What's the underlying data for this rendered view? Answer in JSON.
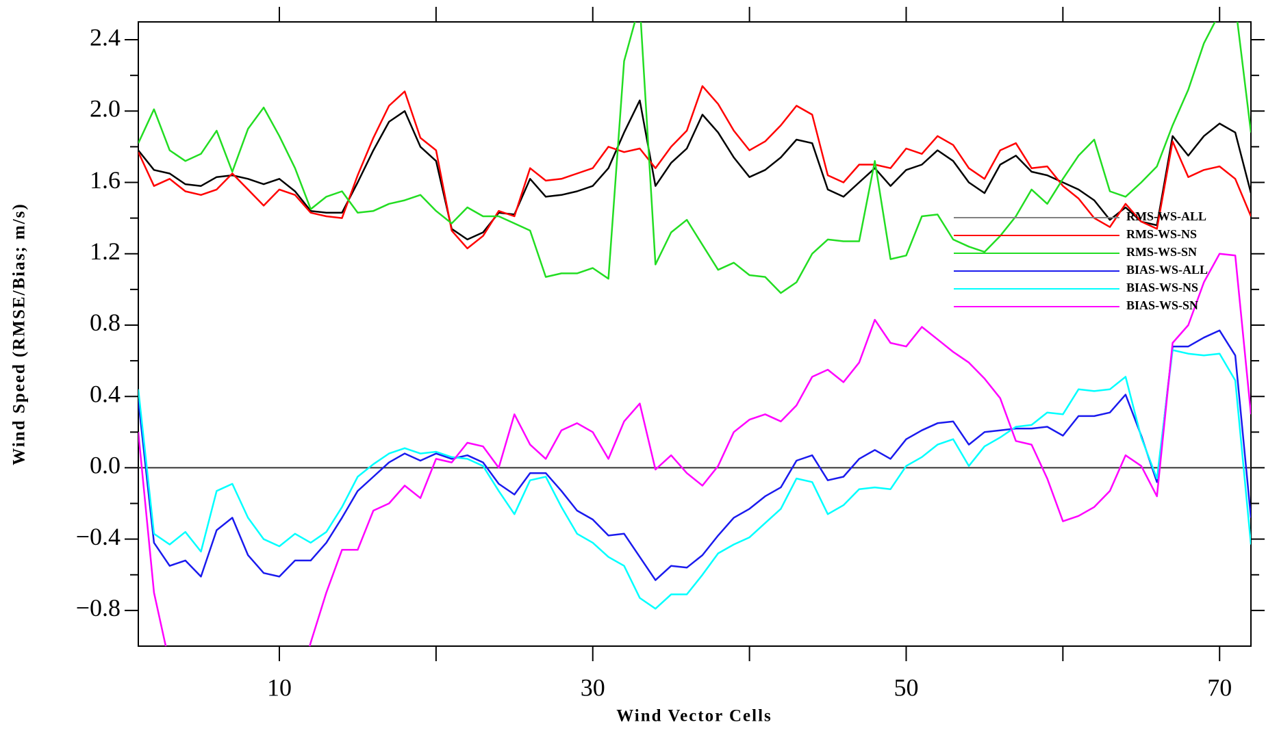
{
  "chart_data": {
    "type": "line",
    "x_label": "Wind Vector Cells",
    "y_label": "Wind Speed (RMSE/Bias; m/s)",
    "x": [
      1,
      2,
      3,
      4,
      5,
      6,
      7,
      8,
      9,
      10,
      11,
      12,
      13,
      14,
      15,
      16,
      17,
      18,
      19,
      20,
      21,
      22,
      23,
      24,
      25,
      26,
      27,
      28,
      29,
      30,
      31,
      32,
      33,
      34,
      35,
      36,
      37,
      38,
      39,
      40,
      41,
      42,
      43,
      44,
      45,
      46,
      47,
      48,
      49,
      50,
      51,
      52,
      53,
      54,
      55,
      56,
      57,
      58,
      59,
      60,
      61,
      62,
      63,
      64,
      65,
      66,
      67,
      68,
      69,
      70,
      71,
      72
    ],
    "xlim": [
      1,
      72
    ],
    "xticks": [
      10,
      30,
      50,
      70
    ],
    "xminor": [
      20,
      40,
      60
    ],
    "ylim": [
      -1.0,
      2.5
    ],
    "yticks": [
      {
        "value": -0.8,
        "label": "−0.8"
      },
      {
        "value": -0.4,
        "label": "−0.4"
      },
      {
        "value": 0,
        "label": "0.0"
      },
      0.4,
      0.8,
      1.2,
      1.6,
      {
        "value": 2,
        "label": "2.0"
      },
      2.4
    ],
    "yminor": [
      -0.6,
      -0.2,
      0.2,
      0.6,
      1.0,
      1.4,
      1.8,
      2.2
    ],
    "hline": 0,
    "legend": "right",
    "series": [
      {
        "name": "RMS-WS-ALL",
        "color": "#000000",
        "legend_color": "#808080",
        "values": [
          1.78,
          1.67,
          1.65,
          1.59,
          1.58,
          1.63,
          1.64,
          1.62,
          1.59,
          1.62,
          1.55,
          1.44,
          1.43,
          1.43,
          1.6,
          1.78,
          1.94,
          2.0,
          1.8,
          1.72,
          1.34,
          1.28,
          1.32,
          1.43,
          1.42,
          1.62,
          1.52,
          1.53,
          1.55,
          1.58,
          1.68,
          1.88,
          2.06,
          1.58,
          1.71,
          1.79,
          1.98,
          1.88,
          1.74,
          1.63,
          1.67,
          1.74,
          1.84,
          1.82,
          1.56,
          1.52,
          1.6,
          1.68,
          1.58,
          1.67,
          1.7,
          1.78,
          1.72,
          1.6,
          1.54,
          1.7,
          1.75,
          1.66,
          1.64,
          1.6,
          1.56,
          1.5,
          1.39,
          1.46,
          1.38,
          1.36,
          1.86,
          1.75,
          1.86,
          1.93,
          1.88,
          1.54
        ]
      },
      {
        "name": "RMS-WS-NS",
        "color": "#ff0000",
        "values": [
          1.77,
          1.58,
          1.62,
          1.55,
          1.53,
          1.56,
          1.65,
          1.56,
          1.47,
          1.56,
          1.53,
          1.43,
          1.41,
          1.4,
          1.64,
          1.85,
          2.03,
          2.11,
          1.85,
          1.78,
          1.33,
          1.23,
          1.3,
          1.44,
          1.41,
          1.68,
          1.61,
          1.62,
          1.65,
          1.68,
          1.8,
          1.77,
          1.79,
          1.68,
          1.8,
          1.89,
          2.14,
          2.04,
          1.89,
          1.78,
          1.83,
          1.92,
          2.03,
          1.98,
          1.64,
          1.6,
          1.7,
          1.7,
          1.68,
          1.79,
          1.76,
          1.86,
          1.81,
          1.68,
          1.62,
          1.78,
          1.82,
          1.68,
          1.69,
          1.58,
          1.51,
          1.4,
          1.35,
          1.48,
          1.38,
          1.34,
          1.83,
          1.63,
          1.67,
          1.69,
          1.62,
          1.41
        ]
      },
      {
        "name": "RMS-WS-SN",
        "color": "#22dd22",
        "values": [
          1.82,
          2.01,
          1.78,
          1.72,
          1.76,
          1.89,
          1.66,
          1.9,
          2.02,
          1.86,
          1.68,
          1.45,
          1.52,
          1.55,
          1.43,
          1.44,
          1.48,
          1.5,
          1.53,
          1.44,
          1.37,
          1.46,
          1.41,
          1.41,
          1.37,
          1.33,
          1.07,
          1.09,
          1.09,
          1.12,
          1.06,
          2.28,
          2.6,
          1.14,
          1.32,
          1.39,
          1.25,
          1.11,
          1.15,
          1.08,
          1.07,
          0.98,
          1.04,
          1.2,
          1.28,
          1.27,
          1.27,
          1.72,
          1.17,
          1.19,
          1.41,
          1.42,
          1.28,
          1.24,
          1.21,
          1.3,
          1.41,
          1.56,
          1.48,
          1.62,
          1.75,
          1.84,
          1.55,
          1.52,
          1.6,
          1.69,
          1.92,
          2.12,
          2.38,
          2.55,
          2.6,
          1.88
        ]
      },
      {
        "name": "BIAS-WS-ALL",
        "color": "#1a1aee",
        "values": [
          0.38,
          -0.42,
          -0.55,
          -0.52,
          -0.61,
          -0.35,
          -0.28,
          -0.49,
          -0.59,
          -0.61,
          -0.52,
          -0.52,
          -0.42,
          -0.28,
          -0.13,
          -0.05,
          0.03,
          0.08,
          0.04,
          0.08,
          0.05,
          0.07,
          0.03,
          -0.09,
          -0.15,
          -0.03,
          -0.03,
          -0.13,
          -0.24,
          -0.29,
          -0.38,
          -0.37,
          -0.5,
          -0.63,
          -0.55,
          -0.56,
          -0.49,
          -0.38,
          -0.28,
          -0.23,
          -0.16,
          -0.11,
          0.04,
          0.07,
          -0.07,
          -0.05,
          0.05,
          0.1,
          0.05,
          0.16,
          0.21,
          0.25,
          0.26,
          0.13,
          0.2,
          0.21,
          0.22,
          0.22,
          0.23,
          0.18,
          0.29,
          0.29,
          0.31,
          0.41,
          0.18,
          -0.08,
          0.68,
          0.68,
          0.73,
          0.77,
          0.63,
          -0.28
        ]
      },
      {
        "name": "BIAS-WS-NS",
        "color": "#00ffff",
        "values": [
          0.44,
          -0.37,
          -0.43,
          -0.36,
          -0.47,
          -0.13,
          -0.09,
          -0.28,
          -0.4,
          -0.44,
          -0.37,
          -0.42,
          -0.36,
          -0.22,
          -0.05,
          0.02,
          0.08,
          0.11,
          0.08,
          0.09,
          0.06,
          0.05,
          0.01,
          -0.13,
          -0.26,
          -0.07,
          -0.05,
          -0.22,
          -0.37,
          -0.42,
          -0.5,
          -0.55,
          -0.73,
          -0.79,
          -0.71,
          -0.71,
          -0.6,
          -0.48,
          -0.43,
          -0.39,
          -0.31,
          -0.23,
          -0.06,
          -0.08,
          -0.26,
          -0.21,
          -0.12,
          -0.11,
          -0.12,
          0.01,
          0.06,
          0.13,
          0.16,
          0.01,
          0.12,
          0.17,
          0.23,
          0.24,
          0.31,
          0.3,
          0.44,
          0.43,
          0.44,
          0.51,
          0.17,
          -0.06,
          0.66,
          0.64,
          0.63,
          0.64,
          0.49,
          -0.43
        ]
      },
      {
        "name": "BIAS-WS-SN",
        "color": "#ff00ff",
        "values": [
          0.2,
          -0.7,
          -1.1,
          null,
          null,
          null,
          null,
          null,
          null,
          null,
          -1.3,
          -0.98,
          -0.7,
          -0.46,
          -0.46,
          -0.24,
          -0.2,
          -0.1,
          -0.17,
          0.05,
          0.03,
          0.14,
          0.12,
          0.0,
          0.3,
          0.13,
          0.05,
          0.21,
          0.25,
          0.2,
          0.05,
          0.26,
          0.36,
          -0.01,
          0.07,
          -0.03,
          -0.1,
          0.01,
          0.2,
          0.27,
          0.3,
          0.26,
          0.35,
          0.51,
          0.55,
          0.48,
          0.59,
          0.83,
          0.7,
          0.68,
          0.79,
          0.72,
          0.65,
          0.59,
          0.5,
          0.39,
          0.15,
          0.13,
          -0.06,
          -0.3,
          -0.27,
          -0.22,
          -0.13,
          0.07,
          0.01,
          -0.16,
          0.7,
          0.8,
          1.04,
          1.2,
          1.19,
          0.3
        ]
      }
    ]
  }
}
